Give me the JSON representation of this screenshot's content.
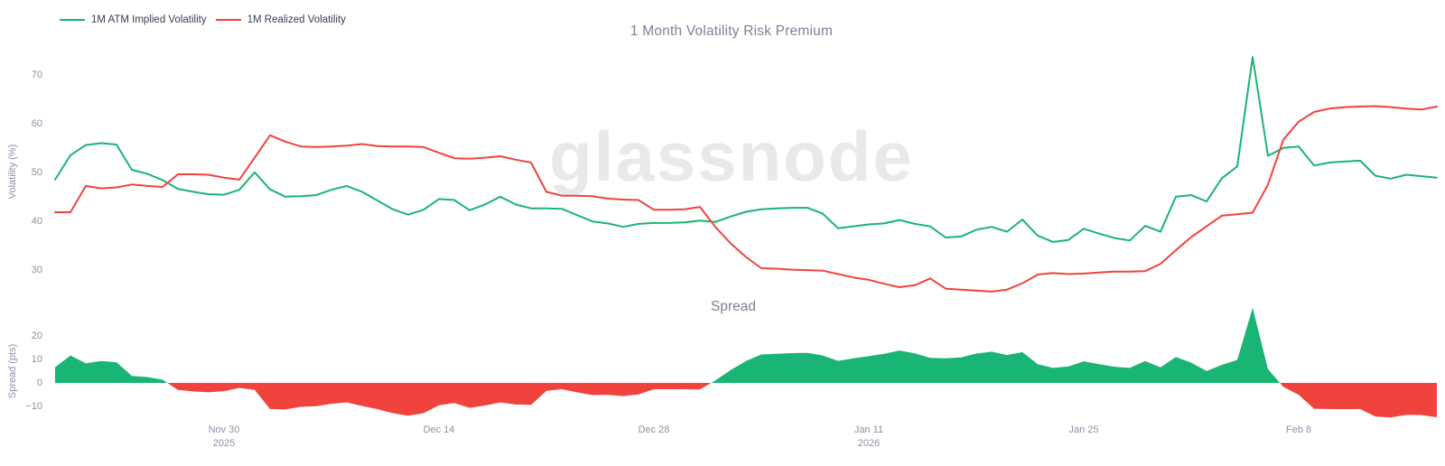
{
  "header": {
    "title": "1 Month Volatility Risk Premium",
    "legend": [
      {
        "label": "1M ATM Implied Volatility",
        "color": "#1ab475"
      },
      {
        "label": "1M Realized Volatility",
        "color": "#f0433e"
      }
    ]
  },
  "watermark": "glassnode",
  "chart_data": [
    {
      "type": "line",
      "title": "1 Month Volatility Risk Premium",
      "ylabel": "Volatility (%)",
      "ylim": [
        25,
        75
      ],
      "grid": false,
      "legend_position": "top-left",
      "y_ticks": [
        70,
        60,
        50,
        40,
        30
      ],
      "x_ticks": [
        {
          "label": "Nov 30",
          "year": "2025",
          "index": 11
        },
        {
          "label": "Dec 14",
          "index": 25
        },
        {
          "label": "Dec 28",
          "index": 39
        },
        {
          "label": "Jan 11",
          "year": "2026",
          "index": 53
        },
        {
          "label": "Jan 25",
          "index": 67
        },
        {
          "label": "Feb 8",
          "index": 81
        }
      ],
      "series": [
        {
          "name": "1M ATM Implied Volatility",
          "color": "#1ab475",
          "values": [
            48.5,
            53.5,
            55.6,
            56.0,
            55.7,
            50.5,
            49.7,
            48.4,
            46.6,
            46.0,
            45.5,
            45.4,
            46.4,
            50.0,
            46.5,
            45.0,
            45.1,
            45.3,
            46.4,
            47.2,
            46.0,
            44.2,
            42.4,
            41.3,
            42.3,
            44.5,
            44.3,
            42.2,
            43.4,
            45.0,
            43.4,
            42.6,
            42.6,
            42.5,
            41.2,
            39.9,
            39.5,
            38.8,
            39.4,
            39.6,
            39.6,
            39.7,
            40.1,
            39.8,
            40.9,
            41.9,
            42.4,
            42.6,
            42.7,
            42.7,
            41.5,
            38.5,
            38.9,
            39.3,
            39.5,
            40.2,
            39.4,
            38.9,
            36.6,
            36.8,
            38.2,
            38.8,
            37.8,
            40.3,
            37.0,
            35.7,
            36.1,
            38.4,
            37.4,
            36.5,
            36.0,
            39.0,
            37.8,
            45.0,
            45.3,
            44.0,
            48.8,
            51.2,
            73.7,
            53.4,
            55.0,
            55.3,
            51.4,
            52.0,
            52.2,
            52.4,
            49.3,
            48.7,
            49.5,
            49.2,
            48.9
          ]
        },
        {
          "name": "1M Realized Volatility",
          "color": "#f0433e",
          "values": [
            41.8,
            41.8,
            47.2,
            46.7,
            46.9,
            47.5,
            47.2,
            47.0,
            49.6,
            49.6,
            49.5,
            48.9,
            48.5,
            53.0,
            57.6,
            56.3,
            55.3,
            55.2,
            55.3,
            55.5,
            55.8,
            55.4,
            55.3,
            55.3,
            55.2,
            54.0,
            52.9,
            52.8,
            53.0,
            53.3,
            52.6,
            52.0,
            46.0,
            45.2,
            45.2,
            45.1,
            44.6,
            44.4,
            44.3,
            42.3,
            42.3,
            42.4,
            42.9,
            38.8,
            35.4,
            32.6,
            30.3,
            30.2,
            30.0,
            29.9,
            29.8,
            29.1,
            28.4,
            27.9,
            27.1,
            26.4,
            26.8,
            28.2,
            26.1,
            25.9,
            25.7,
            25.5,
            25.9,
            27.2,
            29.0,
            29.3,
            29.1,
            29.2,
            29.4,
            29.6,
            29.6,
            29.7,
            31.2,
            34.0,
            36.7,
            38.9,
            41.1,
            41.4,
            41.7,
            47.5,
            56.7,
            60.4,
            62.4,
            63.1,
            63.4,
            63.5,
            63.6,
            63.4,
            63.1,
            62.9,
            63.5
          ]
        }
      ]
    },
    {
      "type": "area",
      "title": "Spread",
      "ylabel": "Spread (pts)",
      "grid": false,
      "y_ticks": [
        20,
        10,
        0,
        -10
      ],
      "derived_from": "implied minus realized",
      "positive_color": "#1ab475",
      "negative_color": "#f0433e"
    }
  ]
}
